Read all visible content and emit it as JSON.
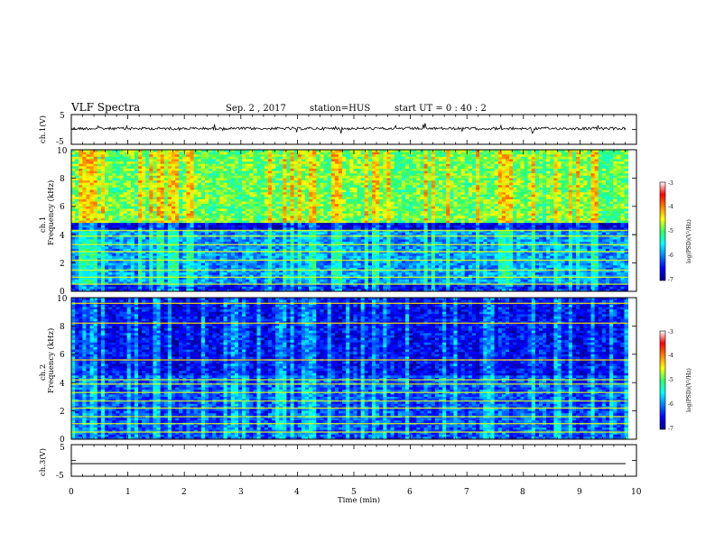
{
  "header": {
    "title": "VLF Spectra",
    "date": "Sep. 2 , 2017",
    "station": "station=HUS",
    "start": "start UT =  0 : 40 : 2"
  },
  "chart_data": [
    {
      "type": "line",
      "ylabel": "ch.1(V)",
      "ylim": [
        -5,
        5
      ],
      "yticks": [
        "5",
        "-5"
      ],
      "xlim": [
        0,
        10
      ],
      "series": [
        {
          "values_approx": "nearly flat trace at about 0 V with small spikes",
          "baseline": 0.0
        }
      ],
      "line_color": "#000000"
    },
    {
      "type": "heatmap",
      "ylabel": "ch.1",
      "ylabel2": "Frequency (kHz)",
      "ylim": [
        0,
        10
      ],
      "yticks": [
        "0",
        "2",
        "4",
        "6",
        "8",
        "10"
      ],
      "xlim": [
        0,
        9.85
      ],
      "colorbar": {
        "label": "log(PSD)(V²/Hz)",
        "range": [
          -7,
          -3
        ],
        "ticks": [
          "-3",
          "-4",
          "-5",
          "-6",
          "-7"
        ]
      },
      "bands": [
        {
          "f_low": 0.0,
          "f_high": 0.5,
          "level": -6.4
        },
        {
          "f_low": 0.5,
          "f_high": 4.3,
          "level": -5.9,
          "harmonic_lines_khz": [
            0.5,
            1.0,
            1.5,
            2.2,
            2.8,
            3.3,
            3.9,
            4.3
          ]
        },
        {
          "f_low": 4.3,
          "f_high": 4.8,
          "level": -6.6
        },
        {
          "f_low": 4.8,
          "f_high": 10.0,
          "level": -4.9
        }
      ]
    },
    {
      "type": "heatmap",
      "ylabel": "ch.2",
      "ylabel2": "Frequency (kHz)",
      "ylim": [
        0,
        10
      ],
      "yticks": [
        "0",
        "2",
        "4",
        "6",
        "8",
        "10"
      ],
      "xlim": [
        0,
        9.85
      ],
      "colorbar": {
        "label": "log(PSD)(V²/Hz)",
        "range": [
          -7,
          -3
        ],
        "ticks": [
          "-3",
          "-4",
          "-5",
          "-6",
          "-7"
        ]
      },
      "bands": [
        {
          "f_low": 0.0,
          "f_high": 4.5,
          "level": -6.2,
          "harmonic_lines_khz": [
            0.5,
            1.1,
            1.6,
            2.2,
            2.7,
            3.3,
            3.9,
            4.2
          ]
        },
        {
          "f_low": 4.5,
          "f_high": 10.0,
          "level": -6.5,
          "tone_lines_khz": [
            5.6,
            8.2,
            9.6
          ]
        }
      ]
    },
    {
      "type": "line",
      "ylabel": "ch.3(V)",
      "ylim": [
        -5,
        5
      ],
      "yticks": [
        "5",
        "-5"
      ],
      "xlim": [
        0,
        10
      ],
      "series": [
        {
          "values_approx": "flat trace",
          "baseline": -1.0
        }
      ],
      "line_color": "#000000"
    }
  ],
  "x_axis": {
    "title": "Time  (min)",
    "ticks": [
      "0",
      "1",
      "2",
      "3",
      "4",
      "5",
      "6",
      "7",
      "8",
      "9",
      "10"
    ],
    "range": [
      0,
      10
    ]
  }
}
